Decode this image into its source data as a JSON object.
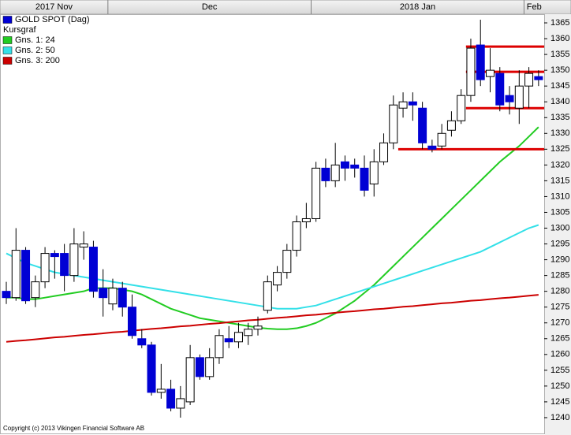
{
  "chart_data": {
    "type": "candlestick",
    "categories": [
      "2017 Nov",
      null,
      null,
      null,
      null,
      null,
      null,
      null,
      null,
      null,
      null,
      "Dec",
      null,
      null,
      null,
      null,
      null,
      null,
      null,
      null,
      null,
      null,
      null,
      null,
      null,
      null,
      null,
      null,
      null,
      null,
      null,
      null,
      "2018 Jan",
      null,
      null,
      null,
      null,
      null,
      null,
      null,
      null,
      null,
      null,
      null,
      null,
      null,
      null,
      null,
      null,
      null,
      null,
      null,
      null,
      null,
      "Feb",
      null
    ],
    "series": [
      {
        "name": "GOLD SPOT (Dag)",
        "color": "#0000d4",
        "up_color": "#ffffff",
        "open": [
          1280,
          1278,
          1293,
          1278,
          1283,
          1292,
          1292,
          1285,
          1294,
          1294,
          1281,
          1276,
          1281,
          1275,
          1265,
          1263,
          1248,
          1249,
          1243,
          1245,
          1259,
          1253,
          1259,
          1265,
          1264,
          1266,
          1268,
          1274,
          1282,
          1286,
          1293,
          1302,
          1303,
          1319,
          1315,
          1321,
          1320,
          1319,
          1314,
          1321,
          1327,
          1338,
          1340,
          1338,
          1326,
          1326,
          1331,
          1334,
          1342,
          1358,
          1348,
          1349,
          1342,
          1338,
          1345,
          1348
        ],
        "high": [
          1283,
          1300,
          1294,
          1285,
          1294,
          1293,
          1295,
          1300,
          1299,
          1296,
          1287,
          1284,
          1283,
          1279,
          1268,
          1264,
          1257,
          1252,
          1250,
          1263,
          1260,
          1262,
          1268,
          1269,
          1270,
          1270,
          1272,
          1285,
          1288,
          1295,
          1304,
          1308,
          1321,
          1322,
          1327,
          1323,
          1322,
          1323,
          1325,
          1330,
          1342,
          1343,
          1343,
          1340,
          1328,
          1333,
          1337,
          1344,
          1360,
          1366,
          1357,
          1351,
          1345,
          1350,
          1351,
          1350
        ],
        "low": [
          1276,
          1277,
          1276,
          1275,
          1281,
          1284,
          1280,
          1283,
          1290,
          1278,
          1272,
          1274,
          1272,
          1265,
          1262,
          1247,
          1246,
          1242,
          1240,
          1244,
          1252,
          1252,
          1257,
          1262,
          1262,
          1263,
          1266,
          1273,
          1280,
          1284,
          1291,
          1300,
          1302,
          1313,
          1313,
          1315,
          1316,
          1310,
          1310,
          1320,
          1325,
          1335,
          1334,
          1325,
          1324,
          1325,
          1329,
          1333,
          1340,
          1345,
          1343,
          1337,
          1336,
          1333,
          1338,
          1345
        ],
        "close": [
          1278,
          1293,
          1277,
          1283,
          1292,
          1291,
          1285,
          1295,
          1295,
          1280,
          1278,
          1281,
          1275,
          1266,
          1263,
          1248,
          1249,
          1243,
          1246,
          1259,
          1253,
          1259,
          1266,
          1264,
          1267,
          1268,
          1269,
          1283,
          1286,
          1293,
          1302,
          1303,
          1319,
          1315,
          1320,
          1319,
          1319,
          1312,
          1321,
          1327,
          1339,
          1340,
          1339,
          1327,
          1325,
          1330,
          1334,
          1342,
          1357,
          1347,
          1350,
          1339,
          1340,
          1345,
          1349,
          1347
        ]
      }
    ],
    "legend_heading": "Kursgraf",
    "overlays": [
      {
        "type": "line",
        "name": "Gns. 1: 24",
        "color": "#22cc22",
        "values": [
          1278,
          1278,
          1277.5,
          1277.5,
          1278,
          1278.5,
          1279,
          1279.5,
          1280,
          1281,
          1281,
          1281,
          1280.5,
          1280,
          1279,
          1277.5,
          1276,
          1274.5,
          1273.5,
          1272.5,
          1271.5,
          1271,
          1270.5,
          1270,
          1269.5,
          1269,
          1268.5,
          1268.2,
          1268,
          1268,
          1268.3,
          1269,
          1270,
          1271.5,
          1273,
          1275,
          1277,
          1279.5,
          1282,
          1285,
          1288,
          1291,
          1294,
          1297,
          1300,
          1303,
          1306,
          1309,
          1312,
          1315,
          1318,
          1321,
          1323.5,
          1326,
          1329,
          1332
        ]
      },
      {
        "type": "line",
        "name": "Gns. 2: 50",
        "color": "#33e0e8",
        "values": [
          1292,
          1290.5,
          1289,
          1288,
          1287,
          1286,
          1285.5,
          1285,
          1284.5,
          1284,
          1283.5,
          1283,
          1282.5,
          1282,
          1281.5,
          1281,
          1280.5,
          1280,
          1279.5,
          1279,
          1278.5,
          1278,
          1277.5,
          1277,
          1276.5,
          1276,
          1275.5,
          1275,
          1274.5,
          1274.5,
          1274.5,
          1275,
          1275.5,
          1276.5,
          1277.5,
          1278.5,
          1279.5,
          1280.5,
          1281.5,
          1282.5,
          1283.5,
          1284.5,
          1285.5,
          1286.5,
          1287.5,
          1288.5,
          1289.5,
          1290.5,
          1291.5,
          1292.5,
          1294,
          1295.5,
          1297,
          1298.5,
          1300,
          1301
        ]
      },
      {
        "type": "line",
        "name": "Gns. 3: 200",
        "color": "#cc0000",
        "values": [
          1264.0,
          1264.3,
          1264.5,
          1264.8,
          1265.1,
          1265.4,
          1265.6,
          1265.9,
          1266.2,
          1266.4,
          1266.7,
          1267.0,
          1267.2,
          1267.5,
          1267.8,
          1268.1,
          1268.3,
          1268.6,
          1268.9,
          1269.1,
          1269.4,
          1269.7,
          1269.9,
          1270.2,
          1270.5,
          1270.8,
          1271.0,
          1271.3,
          1271.6,
          1271.8,
          1272.1,
          1272.4,
          1272.6,
          1272.9,
          1273.2,
          1273.5,
          1273.7,
          1274.0,
          1274.3,
          1274.5,
          1274.8,
          1275.1,
          1275.3,
          1275.6,
          1275.9,
          1276.2,
          1276.4,
          1276.7,
          1277.0,
          1277.2,
          1277.5,
          1277.8,
          1278.0,
          1278.3,
          1278.6,
          1278.9
        ]
      }
    ],
    "levels": [
      {
        "value": 1357.5,
        "start": 48
      },
      {
        "value": 1349.5,
        "start": 48
      },
      {
        "value": 1338,
        "start": 48
      },
      {
        "value": 1325,
        "start": 41
      }
    ],
    "level_color": "#dd0000",
    "ylim": [
      1235,
      1367.75
    ],
    "yticks": [
      1240,
      1245,
      1250,
      1255,
      1260,
      1265,
      1270,
      1275,
      1280,
      1285,
      1290,
      1295,
      1300,
      1305,
      1310,
      1315,
      1320,
      1325,
      1330,
      1335,
      1340,
      1345,
      1350,
      1355,
      1360,
      1365
    ],
    "grid": false,
    "copyright": "Copyright (c) 2013 Vikingen Financial Software AB"
  }
}
